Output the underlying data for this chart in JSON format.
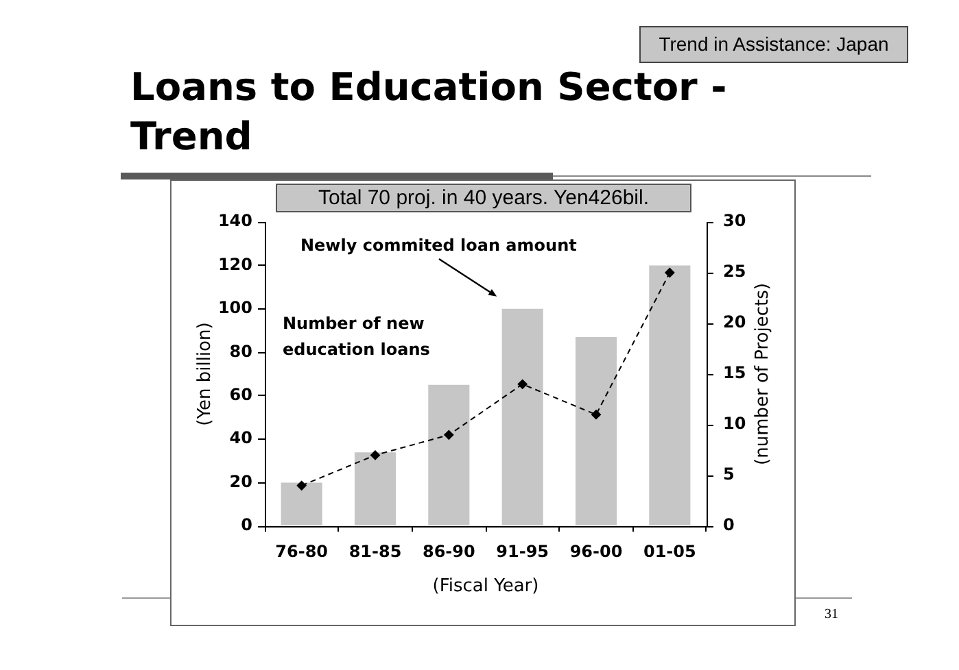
{
  "chart_data": {
    "type": "bar",
    "title": "Loans to Education Sector - Trend",
    "subtitle": "Trend in Assistance: Japan",
    "xlabel": "(Fiscal Year)",
    "ylabel": "(Yen billion)",
    "y2label": "(number of Projects)",
    "annotations": [
      "Total 70 proj. in 40 years. Yen426bil.",
      "Newly commited loan amount",
      "Number of new education loans",
      "31"
    ],
    "categories": [
      "76-80",
      "81-85",
      "86-90",
      "91-95",
      "96-00",
      "01-05"
    ],
    "series": [
      {
        "color": "#c6c6c6",
        "values": [
          20,
          34,
          65,
          100,
          87,
          120
        ]
      },
      {
        "type": "line",
        "axis": "y2",
        "color": "#000000",
        "values": [
          4,
          7,
          9,
          14,
          11,
          25
        ]
      }
    ],
    "ylim": [
      0,
      140
    ],
    "yticks": [
      0,
      20,
      40,
      60,
      80,
      100,
      120,
      140
    ],
    "y2lim": [
      0,
      30
    ],
    "y2ticks": [
      0,
      5,
      10,
      15,
      20,
      25,
      30
    ],
    "marker": "diamond",
    "line_style": "dashed",
    "grid": false,
    "legend": false
  }
}
